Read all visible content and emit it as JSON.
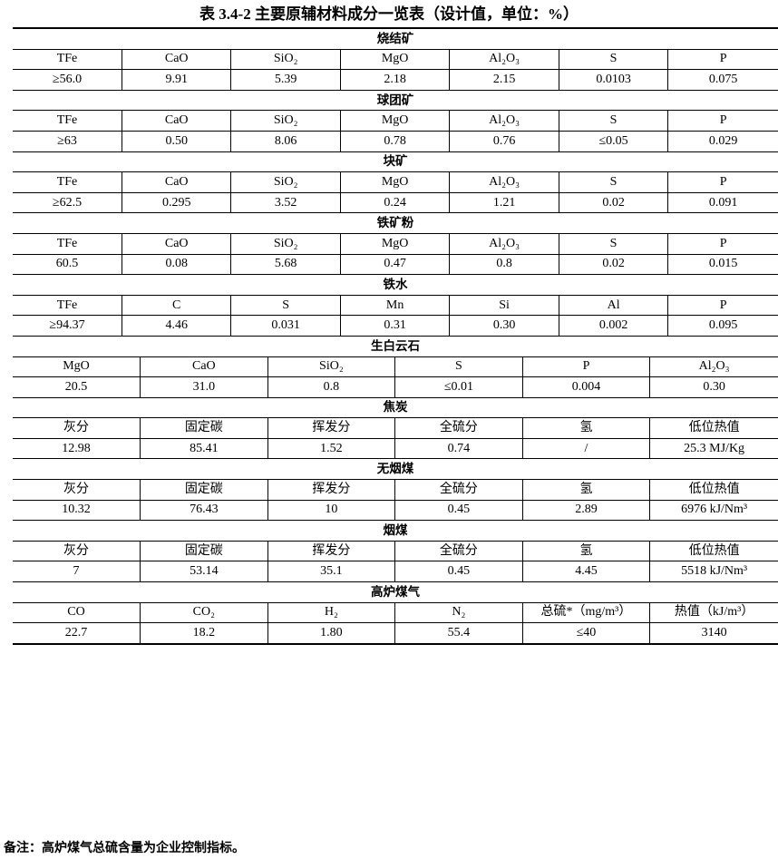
{
  "title": "表 3.4-2  主要原辅材料成分一览表（设计值，单位：%）",
  "note": "备注：高炉煤气总硫含量为企业控制指标。",
  "sections": [
    {
      "name": "烧结矿",
      "layout": "A",
      "headers": [
        "TFe",
        "CaO",
        "SiO₂",
        "MgO",
        "Al₂O₃",
        "S",
        "P"
      ],
      "values": [
        "≥56.0",
        "9.91",
        "5.39",
        "2.18",
        "2.15",
        "0.0103",
        "0.075"
      ]
    },
    {
      "name": "球团矿",
      "layout": "A",
      "headers": [
        "TFe",
        "CaO",
        "SiO₂",
        "MgO",
        "Al₂O₃",
        "S",
        "P"
      ],
      "values": [
        "≥63",
        "0.50",
        "8.06",
        "0.78",
        "0.76",
        "≤0.05",
        "0.029"
      ]
    },
    {
      "name": "块矿",
      "layout": "A",
      "headers": [
        "TFe",
        "CaO",
        "SiO₂",
        "MgO",
        "Al₂O₃",
        "S",
        "P"
      ],
      "values": [
        "≥62.5",
        "0.295",
        "3.52",
        "0.24",
        "1.21",
        "0.02",
        "0.091"
      ]
    },
    {
      "name": "铁矿粉",
      "layout": "A",
      "headers": [
        "TFe",
        "CaO",
        "SiO₂",
        "MgO",
        "Al₂O₃",
        "S",
        "P"
      ],
      "values": [
        "60.5",
        "0.08",
        "5.68",
        "0.47",
        "0.8",
        "0.02",
        "0.015"
      ]
    },
    {
      "name": "铁水",
      "layout": "A",
      "headers": [
        "TFe",
        "C",
        "S",
        "Mn",
        "Si",
        "Al",
        "P"
      ],
      "values": [
        "≥94.37",
        "4.46",
        "0.031",
        "0.31",
        "0.30",
        "0.002",
        "0.095"
      ]
    },
    {
      "name": "生白云石",
      "layout": "B",
      "headers": [
        "MgO",
        "CaO",
        "SiO₂",
        "S",
        "P",
        "Al₂O₃"
      ],
      "values": [
        "20.5",
        "31.0",
        "0.8",
        "≤0.01",
        "0.004",
        "0.30"
      ]
    },
    {
      "name": "焦炭",
      "layout": "B",
      "headers": [
        "灰分",
        "固定碳",
        "挥发分",
        "全硫分",
        "氢",
        "低位热值"
      ],
      "values": [
        "12.98",
        "85.41",
        "1.52",
        "0.74",
        "/",
        "25.3 MJ/Kg"
      ]
    },
    {
      "name": "无烟煤",
      "layout": "B",
      "headers": [
        "灰分",
        "固定碳",
        "挥发分",
        "全硫分",
        "氢",
        "低位热值"
      ],
      "values": [
        "10.32",
        "76.43",
        "10",
        "0.45",
        "2.89",
        "6976 kJ/Nm³"
      ]
    },
    {
      "name": "烟煤",
      "layout": "B",
      "headers": [
        "灰分",
        "固定碳",
        "挥发分",
        "全硫分",
        "氢",
        "低位热值"
      ],
      "values": [
        "7",
        "53.14",
        "35.1",
        "0.45",
        "4.45",
        "5518 kJ/Nm³"
      ]
    },
    {
      "name": "高炉煤气",
      "layout": "B",
      "headers": [
        "CO",
        "CO₂",
        "H₂",
        "N₂",
        "总硫*（mg/m³）",
        "热值（kJ/m³）"
      ],
      "values": [
        "22.7",
        "18.2",
        "1.80",
        "55.4",
        "≤40",
        "3140"
      ]
    }
  ]
}
